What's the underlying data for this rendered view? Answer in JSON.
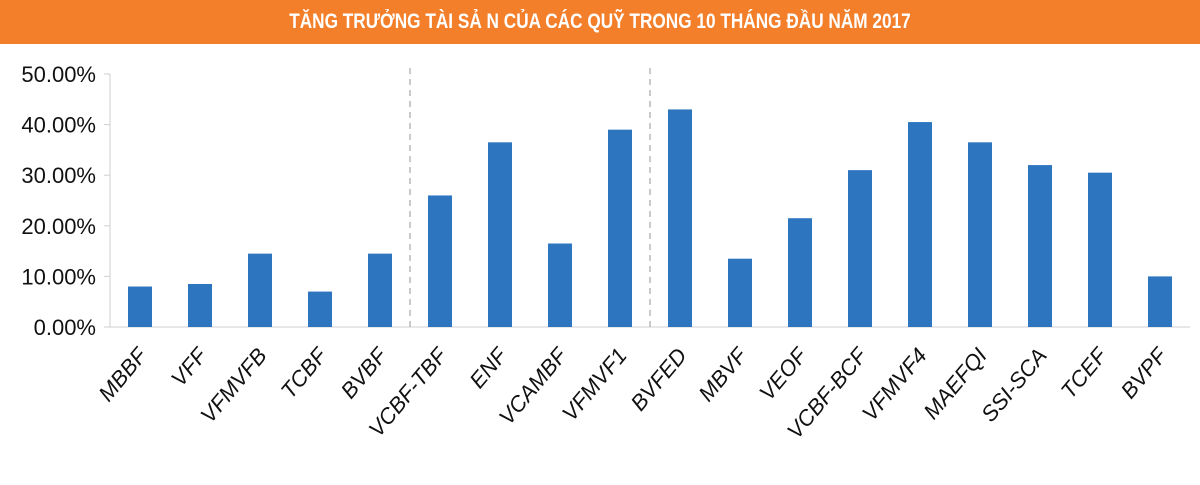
{
  "chart_data": {
    "type": "bar",
    "title": "TĂNG TRƯỞNG TÀI SẢ N CỦA CÁC QUỸ TRONG 10 THÁNG ĐẦU NĂM 2017",
    "categories": [
      "MBBF",
      "VFF",
      "VFMVFB",
      "TCBF",
      "BVBF",
      "VCBF-TBF",
      "ENF",
      "VCAMBF",
      "VFMVF1",
      "BVFED",
      "MBVF",
      "VEOF",
      "VCBF-BCF",
      "VFMVF4",
      "MAEFQI",
      "SSI-SCA",
      "TCEF",
      "BVPF"
    ],
    "values": [
      8.0,
      8.5,
      14.5,
      7.0,
      14.5,
      26.0,
      36.5,
      16.5,
      39.0,
      43.0,
      13.5,
      21.5,
      31.0,
      40.5,
      36.5,
      32.0,
      30.5,
      10.0
    ],
    "ylim": [
      0,
      50
    ],
    "yticks": [
      "0.00%",
      "10.00%",
      "20.00%",
      "30.00%",
      "40.00%",
      "50.00%"
    ],
    "ytick_values": [
      0,
      10,
      20,
      30,
      40,
      50
    ],
    "xlabel": "",
    "ylabel": "",
    "grid": false,
    "separators_after_index": [
      4,
      8
    ],
    "colors": {
      "bar": "#2e75c0",
      "title_bar": "#f47f2a",
      "separator": "#b8b8b8",
      "axis": "#cfcfcf"
    }
  }
}
